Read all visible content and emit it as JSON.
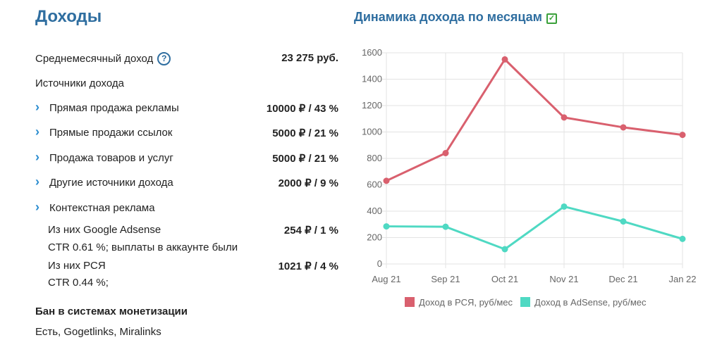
{
  "income": {
    "title": "Доходы",
    "avg_label": "Среднемесячный доход",
    "help_glyph": "?",
    "avg_value": "23 275 руб.",
    "sources_label": "Источники дохода",
    "sources": [
      {
        "label": "Прямая продажа рекламы",
        "value": "10000 ₽  / 43 %"
      },
      {
        "label": "Прямые продажи ссылок",
        "value": "5000 ₽  / 21 %"
      },
      {
        "label": "Продажа товаров и услуг",
        "value": "5000 ₽  / 21 %"
      },
      {
        "label": "Другие источники дохода",
        "value": "2000 ₽  / 9 %"
      },
      {
        "label": "Контекстная реклама",
        "value": ""
      }
    ],
    "adsense_label": "Из них Google Adsense",
    "adsense_value": "254 ₽  / 1 %",
    "adsense_note": "CTR 0.61 %; выплаты в аккаунте были",
    "rsya_label": "Из них РСЯ",
    "rsya_value": "1021 ₽  / 4 %",
    "rsya_note": "CTR 0.44 %;",
    "ban_label": "Бан в системах монетизации",
    "ban_value": "Есть, Gogetlinks, Miralinks"
  },
  "chart_title": "Динамика дохода по месяцам",
  "check_glyph": "✓",
  "chart_data": {
    "type": "line",
    "categories": [
      "Aug 21",
      "Sep 21",
      "Oct 21",
      "Nov 21",
      "Dec 21",
      "Jan 22"
    ],
    "series": [
      {
        "name": "Доход в РСЯ, руб/мес",
        "color": "#d9606e",
        "values": [
          630,
          840,
          1550,
          1110,
          1035,
          978
        ]
      },
      {
        "name": "Доход в AdSense, руб/мес",
        "color": "#4fd9c3",
        "values": [
          285,
          282,
          112,
          435,
          322,
          190
        ]
      }
    ],
    "ylim": [
      0,
      1600
    ],
    "yticks": [
      0,
      200,
      400,
      600,
      800,
      1000,
      1200,
      1400,
      1600
    ],
    "grid": true,
    "legend": "bottom"
  }
}
